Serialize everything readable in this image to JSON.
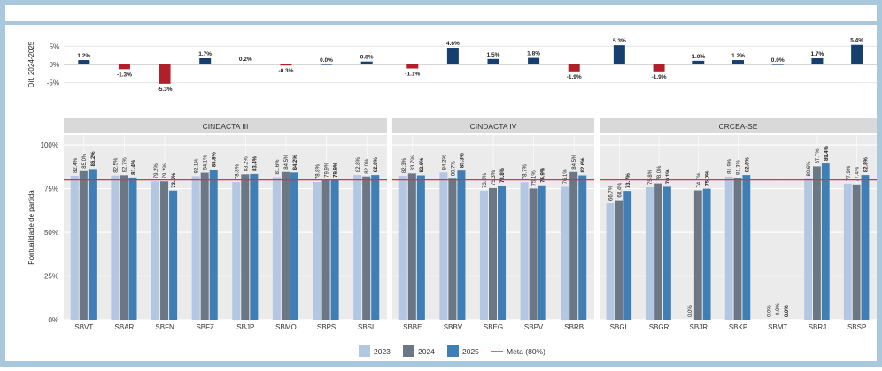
{
  "colors": {
    "frame": "#a9c7dd",
    "panel_bg": "#ebebeb",
    "strip_bg": "#d9d9d9",
    "grid": "#ffffff",
    "y2023": "#b4c7e2",
    "y2024": "#6b7785",
    "y2025": "#3f7fb5",
    "diff_pos": "#153f6e",
    "diff_neg": "#b1202a",
    "meta": "#e0313a"
  },
  "chart_data": [
    {
      "type": "bar",
      "ylabel": "Dif. 2024-2025",
      "ylim": [
        -8,
        8
      ],
      "yticks": [
        "5%",
        "0%",
        "-5%"
      ],
      "grid": true,
      "categories": [
        "SBVT",
        "SBAR",
        "SBFN",
        "SBFZ",
        "SBJP",
        "SBMO",
        "SBPS",
        "SBSL",
        "SBBE",
        "SBBV",
        "SBEG",
        "SBPV",
        "SBRB",
        "SBGL",
        "SBGR",
        "SBJR",
        "SBKP",
        "SBMT",
        "SBRJ",
        "SBSP"
      ],
      "values": [
        1.2,
        -1.3,
        -5.3,
        1.7,
        0.2,
        -0.3,
        0.0,
        0.8,
        -1.1,
        4.6,
        1.5,
        1.8,
        -1.9,
        5.3,
        -1.9,
        1.0,
        1.2,
        0.0,
        1.7,
        5.4
      ],
      "labels": [
        "1.2%",
        "-1.3%",
        "-5.3%",
        "1.7%",
        "0.2%",
        "-0.3%",
        "0.0%",
        "0.8%",
        "-1.1%",
        "4.6%",
        "1.5%",
        "1.8%",
        "-1.9%",
        "5.3%",
        "-1.9%",
        "1.0%",
        "1.2%",
        "0.0%",
        "1.7%",
        "5.4%"
      ]
    },
    {
      "type": "bar",
      "ylabel": "Pontualidade de partida",
      "ylim": [
        0,
        100
      ],
      "yticks": [
        "100%",
        "75%",
        "50%",
        "25%",
        "0%"
      ],
      "grid": true,
      "legend_position": "bottom",
      "legend": [
        "2023",
        "2024",
        "2025",
        "Meta (80%)"
      ],
      "meta_line": 80,
      "panels": [
        {
          "title": "CINDACTA III",
          "categories": [
            "SBVT",
            "SBAR",
            "SBFN",
            "SBFZ",
            "SBJP",
            "SBMO",
            "SBPS",
            "SBSL"
          ],
          "series": [
            {
              "name": "2023",
              "values": [
                82.4,
                82.5,
                79.2,
                82.1,
                78.8,
                81.6,
                78.8,
                82.8
              ],
              "labels": [
                "82.4%",
                "82.5%",
                "79.2%",
                "82.1%",
                "78.8%",
                "81.6%",
                "78.8%",
                "82.8%"
              ]
            },
            {
              "name": "2024",
              "values": [
                85.0,
                82.7,
                79.2,
                84.1,
                83.2,
                84.5,
                79.9,
                82.0
              ],
              "labels": [
                "85.0%",
                "82.7%",
                "79.2%",
                "84.1%",
                "83.2%",
                "84.5%",
                "79.9%",
                "82.0%"
              ]
            },
            {
              "name": "2025",
              "values": [
                86.2,
                81.4,
                73.9,
                85.8,
                83.4,
                84.2,
                79.9,
                82.8
              ],
              "labels": [
                "86.2%",
                "81.4%",
                "73.9%",
                "85.8%",
                "83.4%",
                "84.2%",
                "79.9%",
                "82.8%"
              ]
            }
          ]
        },
        {
          "title": "CINDACTA IV",
          "categories": [
            "SBBE",
            "SBBV",
            "SBEG",
            "SBPV",
            "SBRB"
          ],
          "series": [
            {
              "name": "2023",
              "values": [
                82.3,
                84.2,
                73.8,
                78.7,
                76.1
              ],
              "labels": [
                "82.3%",
                "84.2%",
                "73.8%",
                "78.7%",
                "76.1%"
              ]
            },
            {
              "name": "2024",
              "values": [
                83.7,
                80.7,
                75.3,
                75.1,
                84.5
              ],
              "labels": [
                "83.7%",
                "80.7%",
                "75.3%",
                "75.1%",
                "84.5%"
              ]
            },
            {
              "name": "2025",
              "values": [
                82.6,
                85.3,
                76.8,
                76.9,
                82.6
              ],
              "labels": [
                "82.6%",
                "85.3%",
                "76.8%",
                "76.9%",
                "82.6%"
              ]
            }
          ]
        },
        {
          "title": "CRCEA-SE",
          "categories": [
            "SBGL",
            "SBGR",
            "SBJR",
            "SBKP",
            "SBMT",
            "SBRJ",
            "SBSP"
          ],
          "series": [
            {
              "name": "2023",
              "values": [
                66.7,
                75.8,
                0.0,
                81.9,
                0.0,
                80.6,
                77.9
              ],
              "labels": [
                "66.7%",
                "75.8%",
                "0.0%",
                "81.9%",
                "0.0%",
                "80.6%",
                "77.9%"
              ]
            },
            {
              "name": "2024",
              "values": [
                68.4,
                78.0,
                74.0,
                81.3,
                0.0,
                87.7,
                77.4
              ],
              "labels": [
                "68.4%",
                "78.0%",
                "74.0%",
                "81.3%",
                "-0.0%",
                "87.7%",
                "77.4%"
              ]
            },
            {
              "name": "2025",
              "values": [
                73.7,
                76.1,
                75.0,
                82.8,
                0.0,
                89.4,
                82.8
              ],
              "labels": [
                "73.7%",
                "76.1%",
                "75.0%",
                "82.8%",
                "0.0%",
                "89.4%",
                "82.8%"
              ]
            }
          ]
        }
      ]
    }
  ]
}
